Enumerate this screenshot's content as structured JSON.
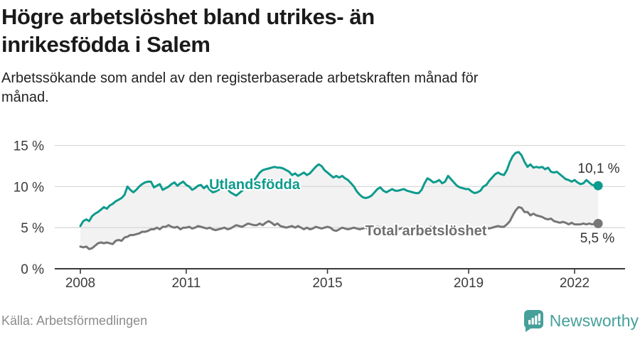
{
  "header": {
    "title_lines": [
      "Högre arbetslöshet bland utrikes- än",
      "inrikesfödda i Salem"
    ],
    "subtitle_lines": [
      "Arbetssökande som andel av den registerbaserade arbetskraften månad för",
      "månad."
    ]
  },
  "chart_data": {
    "type": "line",
    "title": "Högre arbetslöshet bland utrikes- än inrikesfödda i Salem",
    "subtitle": "Arbetssökande som andel av den registerbaserade arbetskraften månad för månad.",
    "x_unit": "month",
    "x_start": "2008-01",
    "x_end": "2022-09",
    "ylim": [
      0,
      16
    ],
    "grid": "horizontal",
    "band_fill_between_series": true,
    "y_ticks": [
      {
        "value": 0,
        "label": "0 %"
      },
      {
        "value": 5,
        "label": "5 %"
      },
      {
        "value": 10,
        "label": "10 %"
      },
      {
        "value": 15,
        "label": "15 %"
      }
    ],
    "x_ticks": [
      {
        "month": 0,
        "label": "2008"
      },
      {
        "month": 36,
        "label": "2011"
      },
      {
        "month": 84,
        "label": "2015"
      },
      {
        "month": 132,
        "label": "2019"
      },
      {
        "month": 168,
        "label": "2022"
      }
    ],
    "series": [
      {
        "name": "Utlandsfödda",
        "color": "#0d9b8d",
        "end_label": "10,1 %",
        "end_value": 10.1,
        "values": [
          5.2,
          5.8,
          6.0,
          5.8,
          6.4,
          6.7,
          6.9,
          7.2,
          7.5,
          7.3,
          7.7,
          7.9,
          8.2,
          8.4,
          8.6,
          9.0,
          10.0,
          9.6,
          9.3,
          9.6,
          10.0,
          10.3,
          10.5,
          10.6,
          10.6,
          9.9,
          10.1,
          10.3,
          9.6,
          9.8,
          10.0,
          10.3,
          10.5,
          10.1,
          10.4,
          10.6,
          10.2,
          10.0,
          9.6,
          9.8,
          10.1,
          10.2,
          9.8,
          10.1,
          9.6,
          9.3,
          9.4,
          9.6,
          9.8,
          10.1,
          9.7,
          9.3,
          9.1,
          8.9,
          9.2,
          9.5,
          9.8,
          10.0,
          10.4,
          10.7,
          11.2,
          11.7,
          12.0,
          12.1,
          12.2,
          12.3,
          12.4,
          12.3,
          12.3,
          12.2,
          12.0,
          11.8,
          11.4,
          11.6,
          11.3,
          11.5,
          11.7,
          11.4,
          11.6,
          12.0,
          12.4,
          12.7,
          12.5,
          12.0,
          11.7,
          11.4,
          11.1,
          11.3,
          11.1,
          11.3,
          11.0,
          10.8,
          10.4,
          10.0,
          9.4,
          9.0,
          8.7,
          8.6,
          8.7,
          8.9,
          9.3,
          9.7,
          9.9,
          9.5,
          9.3,
          9.5,
          9.7,
          9.5,
          9.5,
          9.6,
          9.7,
          9.5,
          9.4,
          9.3,
          9.2,
          9.2,
          9.6,
          10.4,
          11.0,
          10.8,
          10.5,
          10.6,
          10.8,
          10.4,
          10.6,
          11.3,
          10.9,
          10.5,
          10.1,
          9.9,
          9.8,
          9.7,
          9.7,
          9.4,
          9.2,
          9.3,
          9.5,
          10.0,
          10.2,
          10.7,
          11.1,
          11.5,
          11.7,
          11.5,
          11.4,
          12.0,
          13.0,
          13.7,
          14.1,
          14.2,
          13.8,
          13.0,
          12.4,
          12.7,
          12.3,
          12.4,
          12.3,
          12.4,
          12.1,
          12.3,
          11.8,
          11.7,
          11.8,
          11.5,
          11.2,
          10.9,
          10.8,
          10.6,
          10.8,
          10.5,
          10.3,
          10.4,
          10.8,
          10.5,
          10.2,
          10.1,
          10.1
        ]
      },
      {
        "name": "Total arbetslöshet",
        "color": "#767676",
        "end_label": "5,5 %",
        "end_value": 5.5,
        "values": [
          2.7,
          2.6,
          2.7,
          2.4,
          2.5,
          2.8,
          3.1,
          3.2,
          3.1,
          3.2,
          3.1,
          3.0,
          3.4,
          3.5,
          3.4,
          3.8,
          3.9,
          4.1,
          4.1,
          4.2,
          4.3,
          4.5,
          4.5,
          4.6,
          4.8,
          4.8,
          5.0,
          4.8,
          5.1,
          5.1,
          5.3,
          5.1,
          5.0,
          5.1,
          4.8,
          5.0,
          5.0,
          5.1,
          4.9,
          5.0,
          5.2,
          5.1,
          5.0,
          4.9,
          5.0,
          4.8,
          4.7,
          4.8,
          4.9,
          5.0,
          4.8,
          4.9,
          5.1,
          5.3,
          5.2,
          5.1,
          5.3,
          5.5,
          5.4,
          5.3,
          5.3,
          5.5,
          5.3,
          5.6,
          5.8,
          5.6,
          5.3,
          5.5,
          5.2,
          5.1,
          5.0,
          5.1,
          5.2,
          5.0,
          5.2,
          5.0,
          4.8,
          5.0,
          4.8,
          4.9,
          5.1,
          5.0,
          4.9,
          5.0,
          5.1,
          5.0,
          4.7,
          4.6,
          4.8,
          5.0,
          4.9,
          4.8,
          4.9,
          5.0,
          4.9,
          4.8,
          4.9,
          5.0,
          4.8,
          4.9,
          5.0,
          5.1,
          5.0,
          4.9,
          4.8,
          4.9,
          5.0,
          4.9,
          4.8,
          4.9,
          5.0,
          4.9,
          4.8,
          4.9,
          5.0,
          4.9,
          4.8,
          4.9,
          5.0,
          5.1,
          5.0,
          4.9,
          4.8,
          4.7,
          4.8,
          4.9,
          4.8,
          4.7,
          4.6,
          4.7,
          4.8,
          4.7,
          4.8,
          4.7,
          4.6,
          4.7,
          4.8,
          4.9,
          5.0,
          4.9,
          5.0,
          5.1,
          5.2,
          5.1,
          5.1,
          5.4,
          5.8,
          6.5,
          7.1,
          7.5,
          7.4,
          6.9,
          6.9,
          6.5,
          6.7,
          6.5,
          6.4,
          6.3,
          6.1,
          6.0,
          6.1,
          5.8,
          5.7,
          5.6,
          5.7,
          5.6,
          5.4,
          5.6,
          5.4,
          5.4,
          5.4,
          5.5,
          5.4,
          5.5,
          5.4,
          5.5,
          5.5
        ]
      }
    ]
  },
  "footer": {
    "source": "Källa: Arbetsförmedlingen",
    "brand": "Newsworthy"
  },
  "colors": {
    "teal": "#0d9b8d",
    "gray": "#767676",
    "band_fill": "#f2f2f2",
    "gridline": "#d9d9d9",
    "axis": "#3a3a3a",
    "brand_teal": "#46a09a"
  }
}
